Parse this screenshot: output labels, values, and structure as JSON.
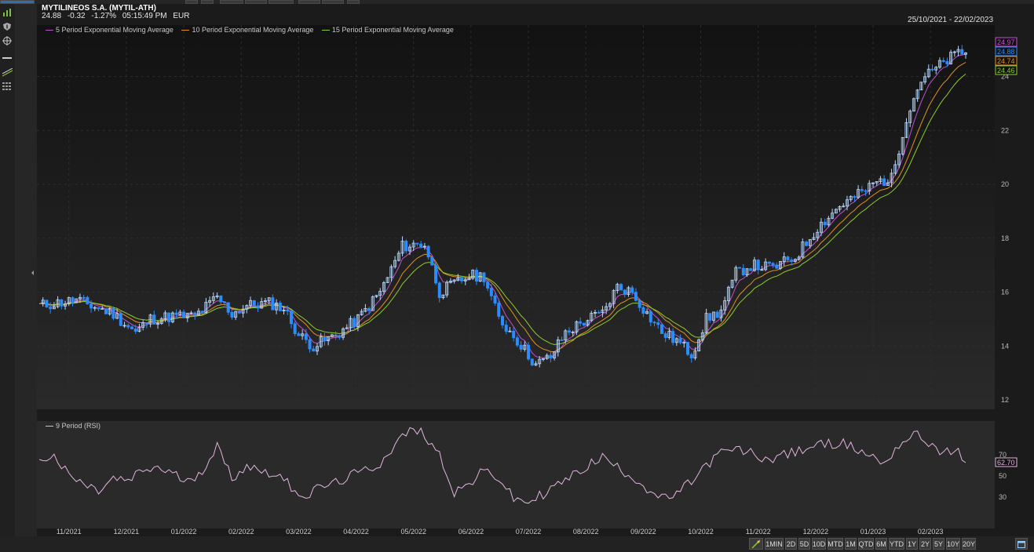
{
  "header": {
    "title": "MYTILINEOS S.A. (MYTIL-ATH)",
    "last": "24.88",
    "change": "-0.32",
    "change_pct": "-1.27%",
    "time": "05:15:49 PM",
    "currency": "EUR",
    "date_range": "25/10/2021 - 22/02/2023"
  },
  "legend": [
    {
      "label": "5 Period Exponential Moving Average",
      "color": "#c04fd0"
    },
    {
      "label": "10 Period Exponential Moving Average",
      "color": "#e09020"
    },
    {
      "label": "15 Period Exponential Moving Average",
      "color": "#8ccc2a"
    }
  ],
  "rsi_legend": "9 Period (RSI)",
  "icons": [
    "bar-chart-icon",
    "shield-icon",
    "crosshair-icon",
    "horizontal-line-icon",
    "trend-line-icon",
    "grid-icon"
  ],
  "range_buttons": [
    "1MIN",
    "2D",
    "5D",
    "10D",
    "MTD",
    "1M",
    "QTD",
    "6M",
    "YTD",
    "1Y",
    "2Y",
    "5Y",
    "10Y",
    "20Y"
  ],
  "chart_data": [
    {
      "type": "candlestick",
      "title": "MYTILINEOS S.A. (MYTIL-ATH)",
      "x_labels": [
        "11/2021",
        "12/2021",
        "01/2022",
        "02/2022",
        "03/2022",
        "04/2022",
        "05/2022",
        "06/2022",
        "07/2022",
        "08/2022",
        "09/2022",
        "10/2022",
        "11/2022",
        "12/2022",
        "01/2023",
        "02/2023"
      ],
      "y_ticks": [
        12,
        14,
        16,
        18,
        20,
        22,
        24
      ],
      "ylim": [
        12,
        25.3
      ],
      "close_path": [
        [
          0,
          15.5
        ],
        [
          10,
          15.7
        ],
        [
          20,
          15.2
        ],
        [
          26,
          14.5
        ],
        [
          30,
          15.0
        ],
        [
          36,
          15.1
        ],
        [
          42,
          15.1
        ],
        [
          48,
          15.8
        ],
        [
          52,
          15.2
        ],
        [
          56,
          15.5
        ],
        [
          62,
          15.6
        ],
        [
          66,
          15.4
        ],
        [
          70,
          14.4
        ],
        [
          74,
          14.0
        ],
        [
          80,
          14.4
        ],
        [
          86,
          15.0
        ],
        [
          92,
          16.0
        ],
        [
          98,
          17.7
        ],
        [
          104,
          17.8
        ],
        [
          108,
          16.0
        ],
        [
          112,
          16.3
        ],
        [
          116,
          16.6
        ],
        [
          120,
          16.6
        ],
        [
          124,
          15.0
        ],
        [
          128,
          14.4
        ],
        [
          134,
          13.3
        ],
        [
          138,
          13.6
        ],
        [
          142,
          14.5
        ],
        [
          148,
          15.0
        ],
        [
          152,
          15.2
        ],
        [
          156,
          16.2
        ],
        [
          160,
          16.0
        ],
        [
          164,
          15.2
        ],
        [
          168,
          14.5
        ],
        [
          172,
          14.2
        ],
        [
          176,
          13.7
        ],
        [
          180,
          15.0
        ],
        [
          184,
          15.3
        ],
        [
          188,
          16.7
        ],
        [
          192,
          17.0
        ],
        [
          198,
          16.9
        ],
        [
          204,
          17.3
        ],
        [
          210,
          18.4
        ],
        [
          216,
          19.2
        ],
        [
          222,
          19.7
        ],
        [
          226,
          20.1
        ],
        [
          230,
          20.2
        ],
        [
          234,
          22.5
        ],
        [
          238,
          23.9
        ],
        [
          242,
          24.3
        ],
        [
          248,
          24.9
        ],
        [
          250,
          24.88
        ]
      ],
      "series": [
        {
          "name": "5 Period Exponential Moving Average",
          "last": 24.97
        },
        {
          "name": "10 Period Exponential Moving Average",
          "last": 24.74
        },
        {
          "name": "15 Period Exponential Moving Average",
          "last": 24.46
        }
      ],
      "last_close": 24.88
    },
    {
      "type": "line",
      "series_name": "9 Period (RSI)",
      "y_ticks": [
        30,
        50,
        70
      ],
      "ylim": [
        0,
        100
      ],
      "values": [
        [
          0,
          66
        ],
        [
          4,
          68
        ],
        [
          8,
          50
        ],
        [
          12,
          42
        ],
        [
          16,
          35
        ],
        [
          20,
          47
        ],
        [
          24,
          45
        ],
        [
          28,
          55
        ],
        [
          32,
          58
        ],
        [
          36,
          52
        ],
        [
          40,
          44
        ],
        [
          44,
          56
        ],
        [
          48,
          78
        ],
        [
          52,
          48
        ],
        [
          56,
          60
        ],
        [
          60,
          55
        ],
        [
          64,
          52
        ],
        [
          68,
          40
        ],
        [
          72,
          30
        ],
        [
          76,
          40
        ],
        [
          80,
          43
        ],
        [
          84,
          50
        ],
        [
          88,
          55
        ],
        [
          92,
          62
        ],
        [
          96,
          80
        ],
        [
          100,
          94
        ],
        [
          104,
          90
        ],
        [
          108,
          70
        ],
        [
          112,
          35
        ],
        [
          116,
          42
        ],
        [
          120,
          55
        ],
        [
          124,
          48
        ],
        [
          128,
          28
        ],
        [
          132,
          25
        ],
        [
          136,
          33
        ],
        [
          140,
          42
        ],
        [
          144,
          50
        ],
        [
          148,
          60
        ],
        [
          152,
          68
        ],
        [
          156,
          58
        ],
        [
          160,
          50
        ],
        [
          164,
          38
        ],
        [
          168,
          28
        ],
        [
          172,
          32
        ],
        [
          176,
          45
        ],
        [
          180,
          60
        ],
        [
          184,
          72
        ],
        [
          188,
          75
        ],
        [
          192,
          72
        ],
        [
          196,
          65
        ],
        [
          200,
          70
        ],
        [
          204,
          72
        ],
        [
          208,
          78
        ],
        [
          212,
          80
        ],
        [
          216,
          82
        ],
        [
          220,
          76
        ],
        [
          224,
          70
        ],
        [
          228,
          62
        ],
        [
          232,
          80
        ],
        [
          236,
          90
        ],
        [
          240,
          82
        ],
        [
          244,
          72
        ],
        [
          248,
          72
        ],
        [
          250,
          62.7
        ]
      ],
      "last": 62.7
    }
  ]
}
